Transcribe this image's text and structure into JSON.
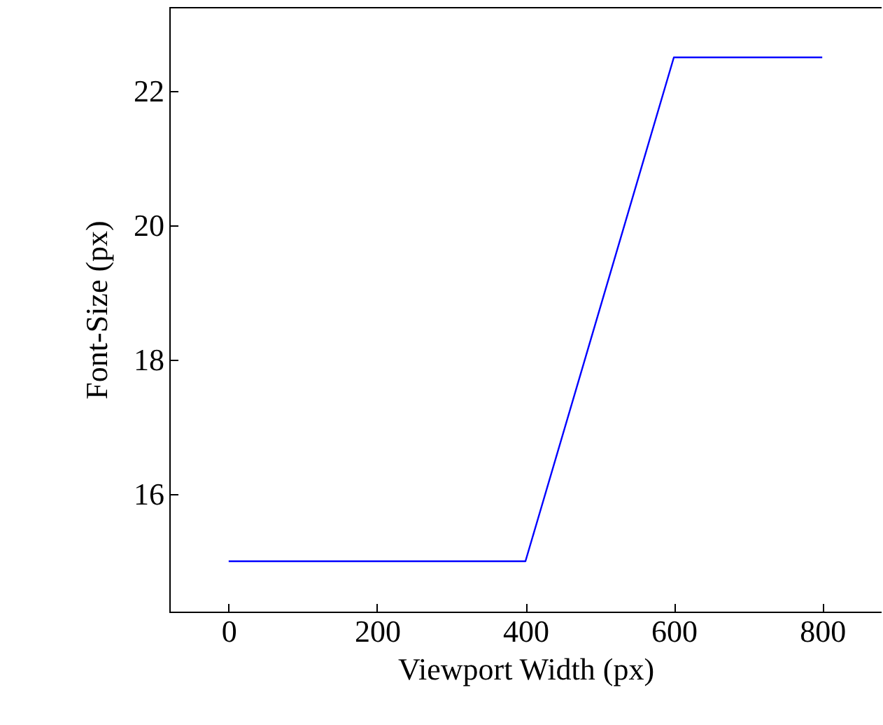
{
  "chart_data": {
    "type": "line",
    "xlabel": "Viewport Width (px)",
    "ylabel": "Font-Size (px)",
    "x": [
      0,
      400,
      600,
      800
    ],
    "series": [
      {
        "color": "#0000ff",
        "values": [
          15,
          15,
          22.5,
          22.5
        ]
      }
    ],
    "xlim": [
      -80,
      880
    ],
    "xticks": [
      0,
      200,
      400,
      600,
      800
    ],
    "ylim": [
      14.25,
      23.25
    ],
    "yticks": [
      16,
      18,
      20,
      22
    ],
    "grid": false,
    "marker": "none",
    "line_style": "solid"
  }
}
